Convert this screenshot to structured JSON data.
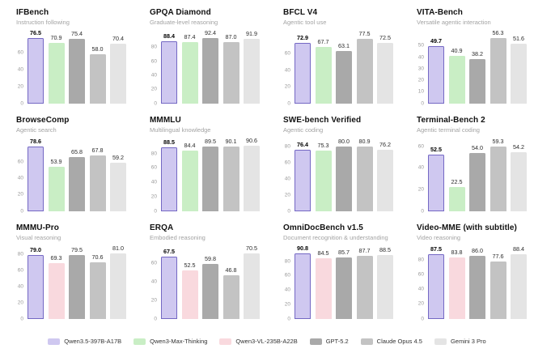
{
  "palette": {
    "purple": {
      "fill": "#cfc8f0",
      "border": "#7468c4"
    },
    "green": {
      "fill": "#c9eec5",
      "border": "#c9eec5"
    },
    "pink": {
      "fill": "#f9d9de",
      "border": "#f9d9de"
    },
    "gpt": {
      "fill": "#a9a9a9",
      "border": "#a9a9a9"
    },
    "claude": {
      "fill": "#c3c3c3",
      "border": "#c3c3c3"
    },
    "gemini": {
      "fill": "#e4e4e4",
      "border": "#e4e4e4"
    }
  },
  "legend": {
    "items": [
      {
        "label": "Qwen3.5-397B-A17B",
        "color_key": "purple"
      },
      {
        "label": "Qwen3-Max-Thinking",
        "color_key": "green"
      },
      {
        "label": "Qwen3-VL-235B-A22B",
        "color_key": "pink"
      },
      {
        "label": "GPT-5.2",
        "color_key": "gpt"
      },
      {
        "label": "Claude Opus 4.5",
        "color_key": "claude"
      },
      {
        "label": "Gemini 3 Pro",
        "color_key": "gemini"
      }
    ]
  },
  "chart_data": [
    {
      "type": "bar",
      "title": "IFBench",
      "subtitle": "Instruction following",
      "yticks": [
        0,
        20,
        40,
        60
      ],
      "ylim": [
        0,
        80
      ],
      "grid": false,
      "series": [
        {
          "name": "Qwen3.5-397B-A17B",
          "value": 76.5,
          "color_key": "purple",
          "highlight": true
        },
        {
          "name": "Qwen3-Max-Thinking",
          "value": 70.9,
          "color_key": "green"
        },
        {
          "name": "GPT-5.2",
          "value": 75.4,
          "color_key": "gpt"
        },
        {
          "name": "Claude Opus 4.5",
          "value": 58.0,
          "color_key": "claude"
        },
        {
          "name": "Gemini 3 Pro",
          "value": 70.4,
          "color_key": "gemini"
        }
      ]
    },
    {
      "type": "bar",
      "title": "GPQA Diamond",
      "subtitle": "Graduate-level reasoning",
      "yticks": [
        0,
        20,
        40,
        60,
        80
      ],
      "ylim": [
        0,
        97
      ],
      "grid": false,
      "series": [
        {
          "name": "Qwen3.5-397B-A17B",
          "value": 88.4,
          "color_key": "purple",
          "highlight": true
        },
        {
          "name": "Qwen3-Max-Thinking",
          "value": 87.4,
          "color_key": "green"
        },
        {
          "name": "GPT-5.2",
          "value": 92.4,
          "color_key": "gpt"
        },
        {
          "name": "Claude Opus 4.5",
          "value": 87.0,
          "color_key": "claude"
        },
        {
          "name": "Gemini 3 Pro",
          "value": 91.9,
          "color_key": "gemini"
        }
      ]
    },
    {
      "type": "bar",
      "title": "BFCL V4",
      "subtitle": "Agentic tool use",
      "yticks": [
        0,
        20,
        40,
        60
      ],
      "ylim": [
        0,
        82
      ],
      "grid": false,
      "series": [
        {
          "name": "Qwen3.5-397B-A17B",
          "value": 72.9,
          "color_key": "purple",
          "highlight": true
        },
        {
          "name": "Qwen3-Max-Thinking",
          "value": 67.7,
          "color_key": "green"
        },
        {
          "name": "GPT-5.2",
          "value": 63.1,
          "color_key": "gpt"
        },
        {
          "name": "Claude Opus 4.5",
          "value": 77.5,
          "color_key": "claude"
        },
        {
          "name": "Gemini 3 Pro",
          "value": 72.5,
          "color_key": "gemini"
        }
      ]
    },
    {
      "type": "bar",
      "title": "VITA-Bench",
      "subtitle": "Versatile agentic interaction",
      "yticks": [
        0,
        10,
        20,
        30,
        40,
        50
      ],
      "ylim": [
        0,
        59
      ],
      "grid": false,
      "series": [
        {
          "name": "Qwen3.5-397B-A17B",
          "value": 49.7,
          "color_key": "purple",
          "highlight": true
        },
        {
          "name": "Qwen3-Max-Thinking",
          "value": 40.9,
          "color_key": "green"
        },
        {
          "name": "GPT-5.2",
          "value": 38.2,
          "color_key": "gpt"
        },
        {
          "name": "Claude Opus 4.5",
          "value": 56.3,
          "color_key": "claude"
        },
        {
          "name": "Gemini 3 Pro",
          "value": 51.6,
          "color_key": "gemini"
        }
      ]
    },
    {
      "type": "bar",
      "title": "BrowseComp",
      "subtitle": "Agentic search",
      "yticks": [
        0,
        20,
        40,
        60
      ],
      "ylim": [
        0,
        83
      ],
      "grid": false,
      "series": [
        {
          "name": "Qwen3.5-397B-A17B",
          "value": 78.6,
          "color_key": "purple",
          "highlight": true
        },
        {
          "name": "Qwen3-Max-Thinking",
          "value": 53.9,
          "color_key": "green"
        },
        {
          "name": "GPT-5.2",
          "value": 65.8,
          "color_key": "gpt"
        },
        {
          "name": "Claude Opus 4.5",
          "value": 67.8,
          "color_key": "claude"
        },
        {
          "name": "Gemini 3 Pro",
          "value": 59.2,
          "color_key": "gemini"
        }
      ]
    },
    {
      "type": "bar",
      "title": "MMMLU",
      "subtitle": "Multilingual knowledge",
      "yticks": [
        0,
        20,
        40,
        60,
        80
      ],
      "ylim": [
        0,
        95
      ],
      "grid": false,
      "series": [
        {
          "name": "Qwen3.5-397B-A17B",
          "value": 88.5,
          "color_key": "purple",
          "highlight": true
        },
        {
          "name": "Qwen3-Max-Thinking",
          "value": 84.4,
          "color_key": "green"
        },
        {
          "name": "GPT-5.2",
          "value": 89.5,
          "color_key": "gpt"
        },
        {
          "name": "Claude Opus 4.5",
          "value": 90.1,
          "color_key": "claude"
        },
        {
          "name": "Gemini 3 Pro",
          "value": 90.6,
          "color_key": "gemini"
        }
      ]
    },
    {
      "type": "bar",
      "title": "SWE-bench Verified",
      "subtitle": "Agentic coding",
      "yticks": [
        0,
        20,
        40,
        60,
        80
      ],
      "ylim": [
        0,
        85
      ],
      "grid": false,
      "series": [
        {
          "name": "Qwen3.5-397B-A17B",
          "value": 76.4,
          "color_key": "purple",
          "highlight": true
        },
        {
          "name": "Qwen3-Max-Thinking",
          "value": 75.3,
          "color_key": "green"
        },
        {
          "name": "GPT-5.2",
          "value": 80.0,
          "color_key": "gpt"
        },
        {
          "name": "Claude Opus 4.5",
          "value": 80.9,
          "color_key": "claude"
        },
        {
          "name": "Gemini 3 Pro",
          "value": 76.2,
          "color_key": "gemini"
        }
      ]
    },
    {
      "type": "bar",
      "title": "Terminal-Bench 2",
      "subtitle": "Agentic terminal coding",
      "yticks": [
        0,
        20,
        40,
        60
      ],
      "ylim": [
        0,
        63
      ],
      "grid": false,
      "series": [
        {
          "name": "Qwen3.5-397B-A17B",
          "value": 52.5,
          "color_key": "purple",
          "highlight": true
        },
        {
          "name": "Qwen3-Max-Thinking",
          "value": 22.5,
          "color_key": "green"
        },
        {
          "name": "GPT-5.2",
          "value": 54.0,
          "color_key": "gpt"
        },
        {
          "name": "Claude Opus 4.5",
          "value": 59.3,
          "color_key": "claude"
        },
        {
          "name": "Gemini 3 Pro",
          "value": 54.2,
          "color_key": "gemini"
        }
      ]
    },
    {
      "type": "bar",
      "title": "MMMU-Pro",
      "subtitle": "Visual reasoning",
      "yticks": [
        0,
        20,
        40,
        60,
        80
      ],
      "ylim": [
        0,
        85
      ],
      "grid": false,
      "series": [
        {
          "name": "Qwen3.5-397B-A17B",
          "value": 79.0,
          "color_key": "purple",
          "highlight": true
        },
        {
          "name": "Qwen3-VL-235B-A22B",
          "value": 69.3,
          "color_key": "pink"
        },
        {
          "name": "GPT-5.2",
          "value": 79.5,
          "color_key": "gpt"
        },
        {
          "name": "Claude Opus 4.5",
          "value": 70.6,
          "color_key": "claude"
        },
        {
          "name": "Gemini 3 Pro",
          "value": 81.0,
          "color_key": "gemini"
        }
      ]
    },
    {
      "type": "bar",
      "title": "ERQA",
      "subtitle": "Embodied reasoning",
      "yticks": [
        0,
        20,
        40,
        60
      ],
      "ylim": [
        0,
        74
      ],
      "grid": false,
      "series": [
        {
          "name": "Qwen3.5-397B-A17B",
          "value": 67.5,
          "color_key": "purple",
          "highlight": true
        },
        {
          "name": "Qwen3-VL-235B-A22B",
          "value": 52.5,
          "color_key": "pink"
        },
        {
          "name": "GPT-5.2",
          "value": 59.8,
          "color_key": "gpt"
        },
        {
          "name": "Claude Opus 4.5",
          "value": 46.8,
          "color_key": "claude"
        },
        {
          "name": "Gemini 3 Pro",
          "value": 70.5,
          "color_key": "gemini"
        }
      ]
    },
    {
      "type": "bar",
      "title": "OmniDocBench v1.5",
      "subtitle": "Document recognition & understanding",
      "yticks": [
        0,
        20,
        40,
        60,
        80
      ],
      "ylim": [
        0,
        95
      ],
      "grid": false,
      "series": [
        {
          "name": "Qwen3.5-397B-A17B",
          "value": 90.8,
          "color_key": "purple",
          "highlight": true
        },
        {
          "name": "Qwen3-VL-235B-A22B",
          "value": 84.5,
          "color_key": "pink"
        },
        {
          "name": "GPT-5.2",
          "value": 85.7,
          "color_key": "gpt"
        },
        {
          "name": "Claude Opus 4.5",
          "value": 87.7,
          "color_key": "claude"
        },
        {
          "name": "Gemini 3 Pro",
          "value": 88.5,
          "color_key": "gemini"
        }
      ]
    },
    {
      "type": "bar",
      "title": "Video-MME (with subtitle)",
      "subtitle": "Video reasoning",
      "yticks": [
        0,
        20,
        40,
        60,
        80
      ],
      "ylim": [
        0,
        93
      ],
      "grid": false,
      "series": [
        {
          "name": "Qwen3.5-397B-A17B",
          "value": 87.5,
          "color_key": "purple",
          "highlight": true
        },
        {
          "name": "Qwen3-VL-235B-A22B",
          "value": 83.8,
          "color_key": "pink"
        },
        {
          "name": "GPT-5.2",
          "value": 86.0,
          "color_key": "gpt"
        },
        {
          "name": "Claude Opus 4.5",
          "value": 77.6,
          "color_key": "claude"
        },
        {
          "name": "Gemini 3 Pro",
          "value": 88.4,
          "color_key": "gemini"
        }
      ]
    }
  ]
}
